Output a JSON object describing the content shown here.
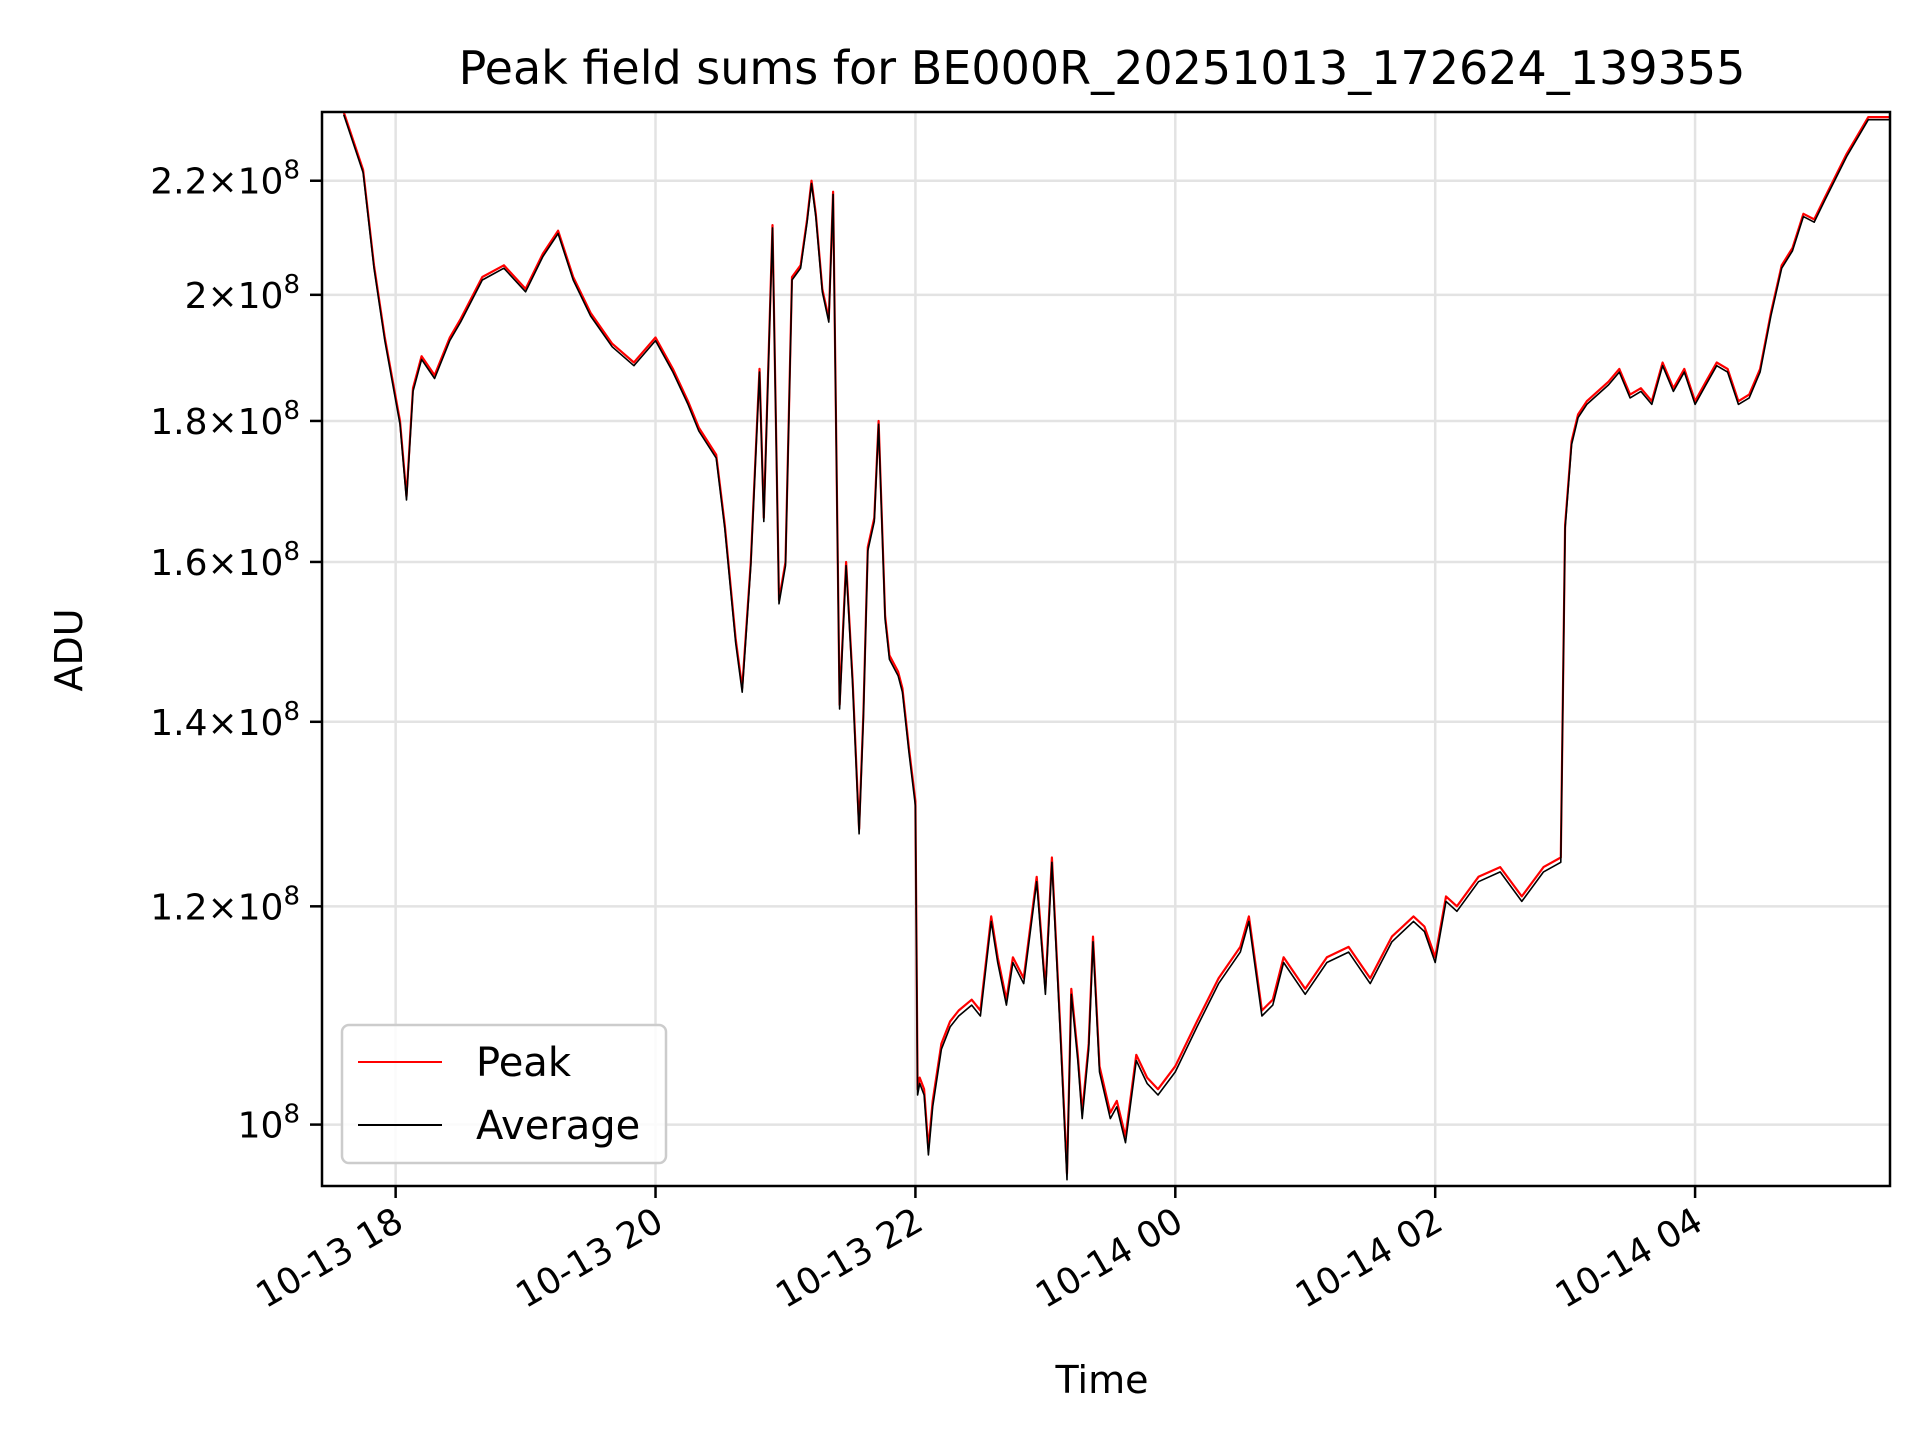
{
  "chart_data": {
    "type": "line",
    "title": "Peak field sums for BE000R_20251013_172624_139355",
    "xlabel": "Time",
    "ylabel": "ADU",
    "x_unit": "datetime",
    "xlim": [
      "2025-10-13 17:26",
      "2025-10-14 05:30"
    ],
    "ylim": [
      95000000,
      233000000
    ],
    "y_scale": "log",
    "grid": true,
    "legend_position": "lower-left",
    "x_ticks": [
      {
        "value": "2025-10-13 18:00",
        "label": "10-13 18"
      },
      {
        "value": "2025-10-13 20:00",
        "label": "10-13 20"
      },
      {
        "value": "2025-10-13 22:00",
        "label": "10-13 22"
      },
      {
        "value": "2025-10-14 00:00",
        "label": "10-14 00"
      },
      {
        "value": "2025-10-14 02:00",
        "label": "10-14 02"
      },
      {
        "value": "2025-10-14 04:00",
        "label": "10-14 04"
      }
    ],
    "y_ticks": [
      {
        "value": 100000000,
        "mantissa": "",
        "exponent": "8"
      },
      {
        "value": 120000000,
        "mantissa": "1.2",
        "exponent": "8"
      },
      {
        "value": 140000000,
        "mantissa": "1.4",
        "exponent": "8"
      },
      {
        "value": 160000000,
        "mantissa": "1.6",
        "exponent": "8"
      },
      {
        "value": 180000000,
        "mantissa": "1.8",
        "exponent": "8"
      },
      {
        "value": 200000000,
        "mantissa": "2",
        "exponent": "8"
      },
      {
        "value": 220000000,
        "mantissa": "2.2",
        "exponent": "8"
      }
    ],
    "series": [
      {
        "name": "Peak",
        "color": "#ff0000",
        "x": [
          "2025-10-13 17:36",
          "2025-10-13 17:45",
          "2025-10-13 17:50",
          "2025-10-13 17:55",
          "2025-10-13 18:02",
          "2025-10-13 18:05",
          "2025-10-13 18:08",
          "2025-10-13 18:12",
          "2025-10-13 18:18",
          "2025-10-13 18:25",
          "2025-10-13 18:30",
          "2025-10-13 18:40",
          "2025-10-13 18:50",
          "2025-10-13 19:00",
          "2025-10-13 19:08",
          "2025-10-13 19:15",
          "2025-10-13 19:22",
          "2025-10-13 19:30",
          "2025-10-13 19:40",
          "2025-10-13 19:50",
          "2025-10-13 20:00",
          "2025-10-13 20:08",
          "2025-10-13 20:15",
          "2025-10-13 20:20",
          "2025-10-13 20:28",
          "2025-10-13 20:32",
          "2025-10-13 20:37",
          "2025-10-13 20:40",
          "2025-10-13 20:44",
          "2025-10-13 20:48",
          "2025-10-13 20:50",
          "2025-10-13 20:54",
          "2025-10-13 20:57",
          "2025-10-13 21:00",
          "2025-10-13 21:03",
          "2025-10-13 21:07",
          "2025-10-13 21:10",
          "2025-10-13 21:12",
          "2025-10-13 21:14",
          "2025-10-13 21:17",
          "2025-10-13 21:20",
          "2025-10-13 21:22",
          "2025-10-13 21:25",
          "2025-10-13 21:28",
          "2025-10-13 21:31",
          "2025-10-13 21:34",
          "2025-10-13 21:36",
          "2025-10-13 21:38",
          "2025-10-13 21:41",
          "2025-10-13 21:43",
          "2025-10-13 21:46",
          "2025-10-13 21:48",
          "2025-10-13 21:52",
          "2025-10-13 21:54",
          "2025-10-13 21:57",
          "2025-10-13 22:00",
          "2025-10-13 22:01",
          "2025-10-13 22:02",
          "2025-10-13 22:04",
          "2025-10-13 22:06",
          "2025-10-13 22:08",
          "2025-10-13 22:12",
          "2025-10-13 22:16",
          "2025-10-13 22:20",
          "2025-10-13 22:26",
          "2025-10-13 22:30",
          "2025-10-13 22:35",
          "2025-10-13 22:38",
          "2025-10-13 22:42",
          "2025-10-13 22:45",
          "2025-10-13 22:50",
          "2025-10-13 22:56",
          "2025-10-13 23:00",
          "2025-10-13 23:03",
          "2025-10-13 23:07",
          "2025-10-13 23:10",
          "2025-10-13 23:12",
          "2025-10-13 23:15",
          "2025-10-13 23:17",
          "2025-10-13 23:20",
          "2025-10-13 23:22",
          "2025-10-13 23:25",
          "2025-10-13 23:30",
          "2025-10-13 23:33",
          "2025-10-13 23:37",
          "2025-10-13 23:42",
          "2025-10-13 23:47",
          "2025-10-13 23:52",
          "2025-10-14 00:00",
          "2025-10-14 00:10",
          "2025-10-14 00:20",
          "2025-10-14 00:30",
          "2025-10-14 00:34",
          "2025-10-14 00:40",
          "2025-10-14 00:45",
          "2025-10-14 00:50",
          "2025-10-14 01:00",
          "2025-10-14 01:10",
          "2025-10-14 01:20",
          "2025-10-14 01:30",
          "2025-10-14 01:40",
          "2025-10-14 01:50",
          "2025-10-14 01:55",
          "2025-10-14 02:00",
          "2025-10-14 02:05",
          "2025-10-14 02:10",
          "2025-10-14 02:20",
          "2025-10-14 02:30",
          "2025-10-14 02:40",
          "2025-10-14 02:50",
          "2025-10-14 02:58",
          "2025-10-14 03:00",
          "2025-10-14 03:03",
          "2025-10-14 03:06",
          "2025-10-14 03:10",
          "2025-10-14 03:20",
          "2025-10-14 03:25",
          "2025-10-14 03:30",
          "2025-10-14 03:35",
          "2025-10-14 03:40",
          "2025-10-14 03:45",
          "2025-10-14 03:50",
          "2025-10-14 03:55",
          "2025-10-14 04:00",
          "2025-10-14 04:05",
          "2025-10-14 04:10",
          "2025-10-14 04:15",
          "2025-10-14 04:20",
          "2025-10-14 04:25",
          "2025-10-14 04:30",
          "2025-10-14 04:35",
          "2025-10-14 04:40",
          "2025-10-14 04:45",
          "2025-10-14 04:50",
          "2025-10-14 04:55",
          "2025-10-14 05:00",
          "2025-10-14 05:10",
          "2025-10-14 05:20",
          "2025-10-14 05:30"
        ],
        "values": [
          233000000,
          222000000,
          205000000,
          193000000,
          180000000,
          169000000,
          185000000,
          190000000,
          187000000,
          193000000,
          196000000,
          203000000,
          205000000,
          201000000,
          207000000,
          211000000,
          203000000,
          197000000,
          192000000,
          189000000,
          193000000,
          188000000,
          183000000,
          179000000,
          175000000,
          165000000,
          150000000,
          144000000,
          160000000,
          188000000,
          166000000,
          212000000,
          155000000,
          160000000,
          203000000,
          205000000,
          213000000,
          220000000,
          214000000,
          201000000,
          196000000,
          218000000,
          142000000,
          160000000,
          145000000,
          128000000,
          141000000,
          162000000,
          166000000,
          180000000,
          153000000,
          148000000,
          146000000,
          144000000,
          137000000,
          131000000,
          103000000,
          104000000,
          103000000,
          98000000,
          102000000,
          107000000,
          109000000,
          110000000,
          111000000,
          110000000,
          119000000,
          115000000,
          111000000,
          115000000,
          113000000,
          123000000,
          112000000,
          125000000,
          108000000,
          96000000,
          112000000,
          106000000,
          101000000,
          107000000,
          117000000,
          105000000,
          101000000,
          102000000,
          99000000,
          106000000,
          104000000,
          103000000,
          105000000,
          109000000,
          113000000,
          116000000,
          119000000,
          110000000,
          111000000,
          115000000,
          112000000,
          115000000,
          116000000,
          113000000,
          117000000,
          119000000,
          118000000,
          115000000,
          121000000,
          120000000,
          123000000,
          124000000,
          121000000,
          124000000,
          125000000,
          165000000,
          177000000,
          181000000,
          183000000,
          186000000,
          188000000,
          184000000,
          185000000,
          183000000,
          189000000,
          185000000,
          188000000,
          183000000,
          186000000,
          189000000,
          188000000,
          183000000,
          184000000,
          188000000,
          197000000,
          205000000,
          208000000,
          214000000,
          213000000,
          217000000,
          225000000,
          232000000,
          232000000
        ]
      },
      {
        "name": "Average",
        "color": "#000000",
        "x": [
          "2025-10-13 17:36",
          "2025-10-13 17:45",
          "2025-10-13 17:50",
          "2025-10-13 17:55",
          "2025-10-13 18:02",
          "2025-10-13 18:05",
          "2025-10-13 18:08",
          "2025-10-13 18:12",
          "2025-10-13 18:18",
          "2025-10-13 18:25",
          "2025-10-13 18:30",
          "2025-10-13 18:40",
          "2025-10-13 18:50",
          "2025-10-13 19:00",
          "2025-10-13 19:08",
          "2025-10-13 19:15",
          "2025-10-13 19:22",
          "2025-10-13 19:30",
          "2025-10-13 19:40",
          "2025-10-13 19:50",
          "2025-10-13 20:00",
          "2025-10-13 20:08",
          "2025-10-13 20:15",
          "2025-10-13 20:20",
          "2025-10-13 20:28",
          "2025-10-13 20:32",
          "2025-10-13 20:37",
          "2025-10-13 20:40",
          "2025-10-13 20:44",
          "2025-10-13 20:48",
          "2025-10-13 20:50",
          "2025-10-13 20:54",
          "2025-10-13 20:57",
          "2025-10-13 21:00",
          "2025-10-13 21:03",
          "2025-10-13 21:07",
          "2025-10-13 21:10",
          "2025-10-13 21:12",
          "2025-10-13 21:14",
          "2025-10-13 21:17",
          "2025-10-13 21:20",
          "2025-10-13 21:22",
          "2025-10-13 21:25",
          "2025-10-13 21:28",
          "2025-10-13 21:31",
          "2025-10-13 21:34",
          "2025-10-13 21:36",
          "2025-10-13 21:38",
          "2025-10-13 21:41",
          "2025-10-13 21:43",
          "2025-10-13 21:46",
          "2025-10-13 21:48",
          "2025-10-13 21:52",
          "2025-10-13 21:54",
          "2025-10-13 21:57",
          "2025-10-13 22:00",
          "2025-10-13 22:01",
          "2025-10-13 22:02",
          "2025-10-13 22:04",
          "2025-10-13 22:06",
          "2025-10-13 22:08",
          "2025-10-13 22:12",
          "2025-10-13 22:16",
          "2025-10-13 22:20",
          "2025-10-13 22:26",
          "2025-10-13 22:30",
          "2025-10-13 22:35",
          "2025-10-13 22:38",
          "2025-10-13 22:42",
          "2025-10-13 22:45",
          "2025-10-13 22:50",
          "2025-10-13 22:56",
          "2025-10-13 23:00",
          "2025-10-13 23:03",
          "2025-10-13 23:07",
          "2025-10-13 23:10",
          "2025-10-13 23:12",
          "2025-10-13 23:15",
          "2025-10-13 23:17",
          "2025-10-13 23:20",
          "2025-10-13 23:22",
          "2025-10-13 23:25",
          "2025-10-13 23:30",
          "2025-10-13 23:33",
          "2025-10-13 23:37",
          "2025-10-13 23:42",
          "2025-10-13 23:47",
          "2025-10-13 23:52",
          "2025-10-14 00:00",
          "2025-10-14 00:10",
          "2025-10-14 00:20",
          "2025-10-14 00:30",
          "2025-10-14 00:34",
          "2025-10-14 00:40",
          "2025-10-14 00:45",
          "2025-10-14 00:50",
          "2025-10-14 01:00",
          "2025-10-14 01:10",
          "2025-10-14 01:20",
          "2025-10-14 01:30",
          "2025-10-14 01:40",
          "2025-10-14 01:50",
          "2025-10-14 01:55",
          "2025-10-14 02:00",
          "2025-10-14 02:05",
          "2025-10-14 02:10",
          "2025-10-14 02:20",
          "2025-10-14 02:30",
          "2025-10-14 02:40",
          "2025-10-14 02:50",
          "2025-10-14 02:58",
          "2025-10-14 03:00",
          "2025-10-14 03:03",
          "2025-10-14 03:06",
          "2025-10-14 03:10",
          "2025-10-14 03:20",
          "2025-10-14 03:25",
          "2025-10-14 03:30",
          "2025-10-14 03:35",
          "2025-10-14 03:40",
          "2025-10-14 03:45",
          "2025-10-14 03:50",
          "2025-10-14 03:55",
          "2025-10-14 04:00",
          "2025-10-14 04:05",
          "2025-10-14 04:10",
          "2025-10-14 04:15",
          "2025-10-14 04:20",
          "2025-10-14 04:25",
          "2025-10-14 04:30",
          "2025-10-14 04:35",
          "2025-10-14 04:40",
          "2025-10-14 04:45",
          "2025-10-14 04:50",
          "2025-10-14 04:55",
          "2025-10-14 05:00",
          "2025-10-14 05:10",
          "2025-10-14 05:20",
          "2025-10-14 05:30"
        ],
        "values": [
          232500000,
          221500000,
          204500000,
          192500000,
          179500000,
          168500000,
          184500000,
          189500000,
          186500000,
          192500000,
          195500000,
          202500000,
          204500000,
          200500000,
          206500000,
          210500000,
          202500000,
          196500000,
          191500000,
          188500000,
          192500000,
          187500000,
          182500000,
          178500000,
          174500000,
          164500000,
          149500000,
          143500000,
          159500000,
          187500000,
          165500000,
          211500000,
          154500000,
          159500000,
          202500000,
          204500000,
          212500000,
          219500000,
          213500000,
          200500000,
          195500000,
          217500000,
          141500000,
          159500000,
          144500000,
          127500000,
          140500000,
          161500000,
          165500000,
          179500000,
          152500000,
          147500000,
          145500000,
          143500000,
          136500000,
          130500000,
          102500000,
          103500000,
          102500000,
          97500000,
          101500000,
          106500000,
          108500000,
          109500000,
          110500000,
          109500000,
          118500000,
          114500000,
          110500000,
          114500000,
          112500000,
          122500000,
          111500000,
          124500000,
          107500000,
          95500000,
          111500000,
          105500000,
          100500000,
          106500000,
          116500000,
          104500000,
          100500000,
          101500000,
          98500000,
          105500000,
          103500000,
          102500000,
          104500000,
          108500000,
          112500000,
          115500000,
          118500000,
          109500000,
          110500000,
          114500000,
          111500000,
          114500000,
          115500000,
          112500000,
          116500000,
          118500000,
          117500000,
          114500000,
          120500000,
          119500000,
          122500000,
          123500000,
          120500000,
          123500000,
          124500000,
          164500000,
          176500000,
          180500000,
          182500000,
          185500000,
          187500000,
          183500000,
          184500000,
          182500000,
          188500000,
          184500000,
          187500000,
          182500000,
          185500000,
          188500000,
          187500000,
          182500000,
          183500000,
          187500000,
          196500000,
          204500000,
          207500000,
          213500000,
          212500000,
          216500000,
          224500000,
          231500000,
          231500000
        ]
      }
    ]
  }
}
